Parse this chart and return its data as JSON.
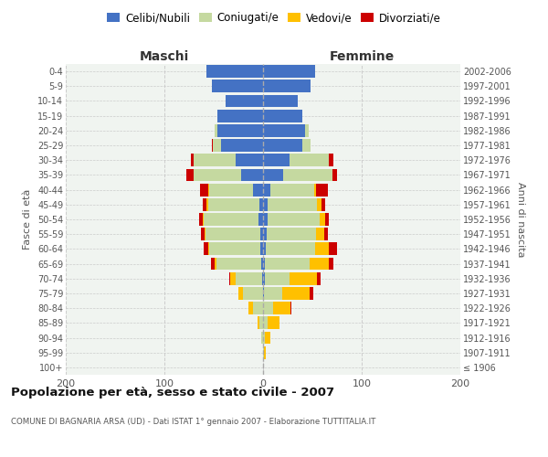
{
  "age_groups": [
    "100+",
    "95-99",
    "90-94",
    "85-89",
    "80-84",
    "75-79",
    "70-74",
    "65-69",
    "60-64",
    "55-59",
    "50-54",
    "45-49",
    "40-44",
    "35-39",
    "30-34",
    "25-29",
    "20-24",
    "15-19",
    "10-14",
    "5-9",
    "0-4"
  ],
  "birth_years": [
    "≤ 1906",
    "1907-1911",
    "1912-1916",
    "1917-1921",
    "1922-1926",
    "1927-1931",
    "1932-1936",
    "1937-1941",
    "1942-1946",
    "1947-1951",
    "1952-1956",
    "1957-1961",
    "1962-1966",
    "1967-1971",
    "1972-1976",
    "1977-1981",
    "1982-1986",
    "1987-1991",
    "1992-1996",
    "1997-2001",
    "2002-2006"
  ],
  "male": {
    "celibi": [
      0,
      0,
      0,
      0,
      0,
      0,
      1,
      2,
      3,
      3,
      5,
      4,
      10,
      22,
      28,
      43,
      46,
      46,
      38,
      52,
      57
    ],
    "coniugati": [
      0,
      0,
      2,
      4,
      10,
      20,
      27,
      45,
      52,
      55,
      55,
      52,
      45,
      48,
      42,
      8,
      3,
      0,
      0,
      0,
      0
    ],
    "vedovi": [
      0,
      0,
      0,
      2,
      5,
      5,
      5,
      2,
      1,
      1,
      1,
      1,
      1,
      0,
      0,
      0,
      0,
      0,
      0,
      0,
      0
    ],
    "divorziati": [
      0,
      0,
      0,
      0,
      0,
      0,
      1,
      4,
      4,
      4,
      4,
      4,
      8,
      8,
      3,
      1,
      0,
      0,
      0,
      0,
      0
    ]
  },
  "female": {
    "nubili": [
      0,
      0,
      0,
      0,
      0,
      1,
      2,
      2,
      3,
      4,
      5,
      5,
      7,
      20,
      27,
      40,
      43,
      40,
      35,
      48,
      53
    ],
    "coniugate": [
      0,
      1,
      2,
      5,
      10,
      18,
      25,
      45,
      50,
      50,
      52,
      50,
      45,
      50,
      40,
      8,
      3,
      0,
      0,
      0,
      0
    ],
    "vedove": [
      0,
      2,
      5,
      12,
      18,
      28,
      28,
      20,
      14,
      8,
      6,
      4,
      2,
      0,
      0,
      0,
      0,
      0,
      0,
      0,
      0
    ],
    "divorziate": [
      0,
      0,
      0,
      0,
      1,
      4,
      3,
      4,
      8,
      4,
      4,
      4,
      12,
      5,
      4,
      0,
      0,
      0,
      0,
      0,
      0
    ]
  },
  "colors": {
    "celibi": "#4472c4",
    "coniugati": "#c5d9a0",
    "vedovi": "#ffc000",
    "divorziati": "#cc0000"
  },
  "xlim": 200,
  "title": "Popolazione per età, sesso e stato civile - 2007",
  "subtitle": "COMUNE DI BAGNARIA ARSA (UD) - Dati ISTAT 1° gennaio 2007 - Elaborazione TUTTITALIA.IT",
  "ylabel_left": "Fasce di età",
  "ylabel_right": "Anni di nascita",
  "xlabel_left": "Maschi",
  "xlabel_right": "Femmine",
  "legend_labels": [
    "Celibi/Nubili",
    "Coniugati/e",
    "Vedovi/e",
    "Divorziati/e"
  ],
  "background_color": "#ffffff",
  "grid_color": "#cccccc",
  "facecolor_ax": "#f0f4f0"
}
